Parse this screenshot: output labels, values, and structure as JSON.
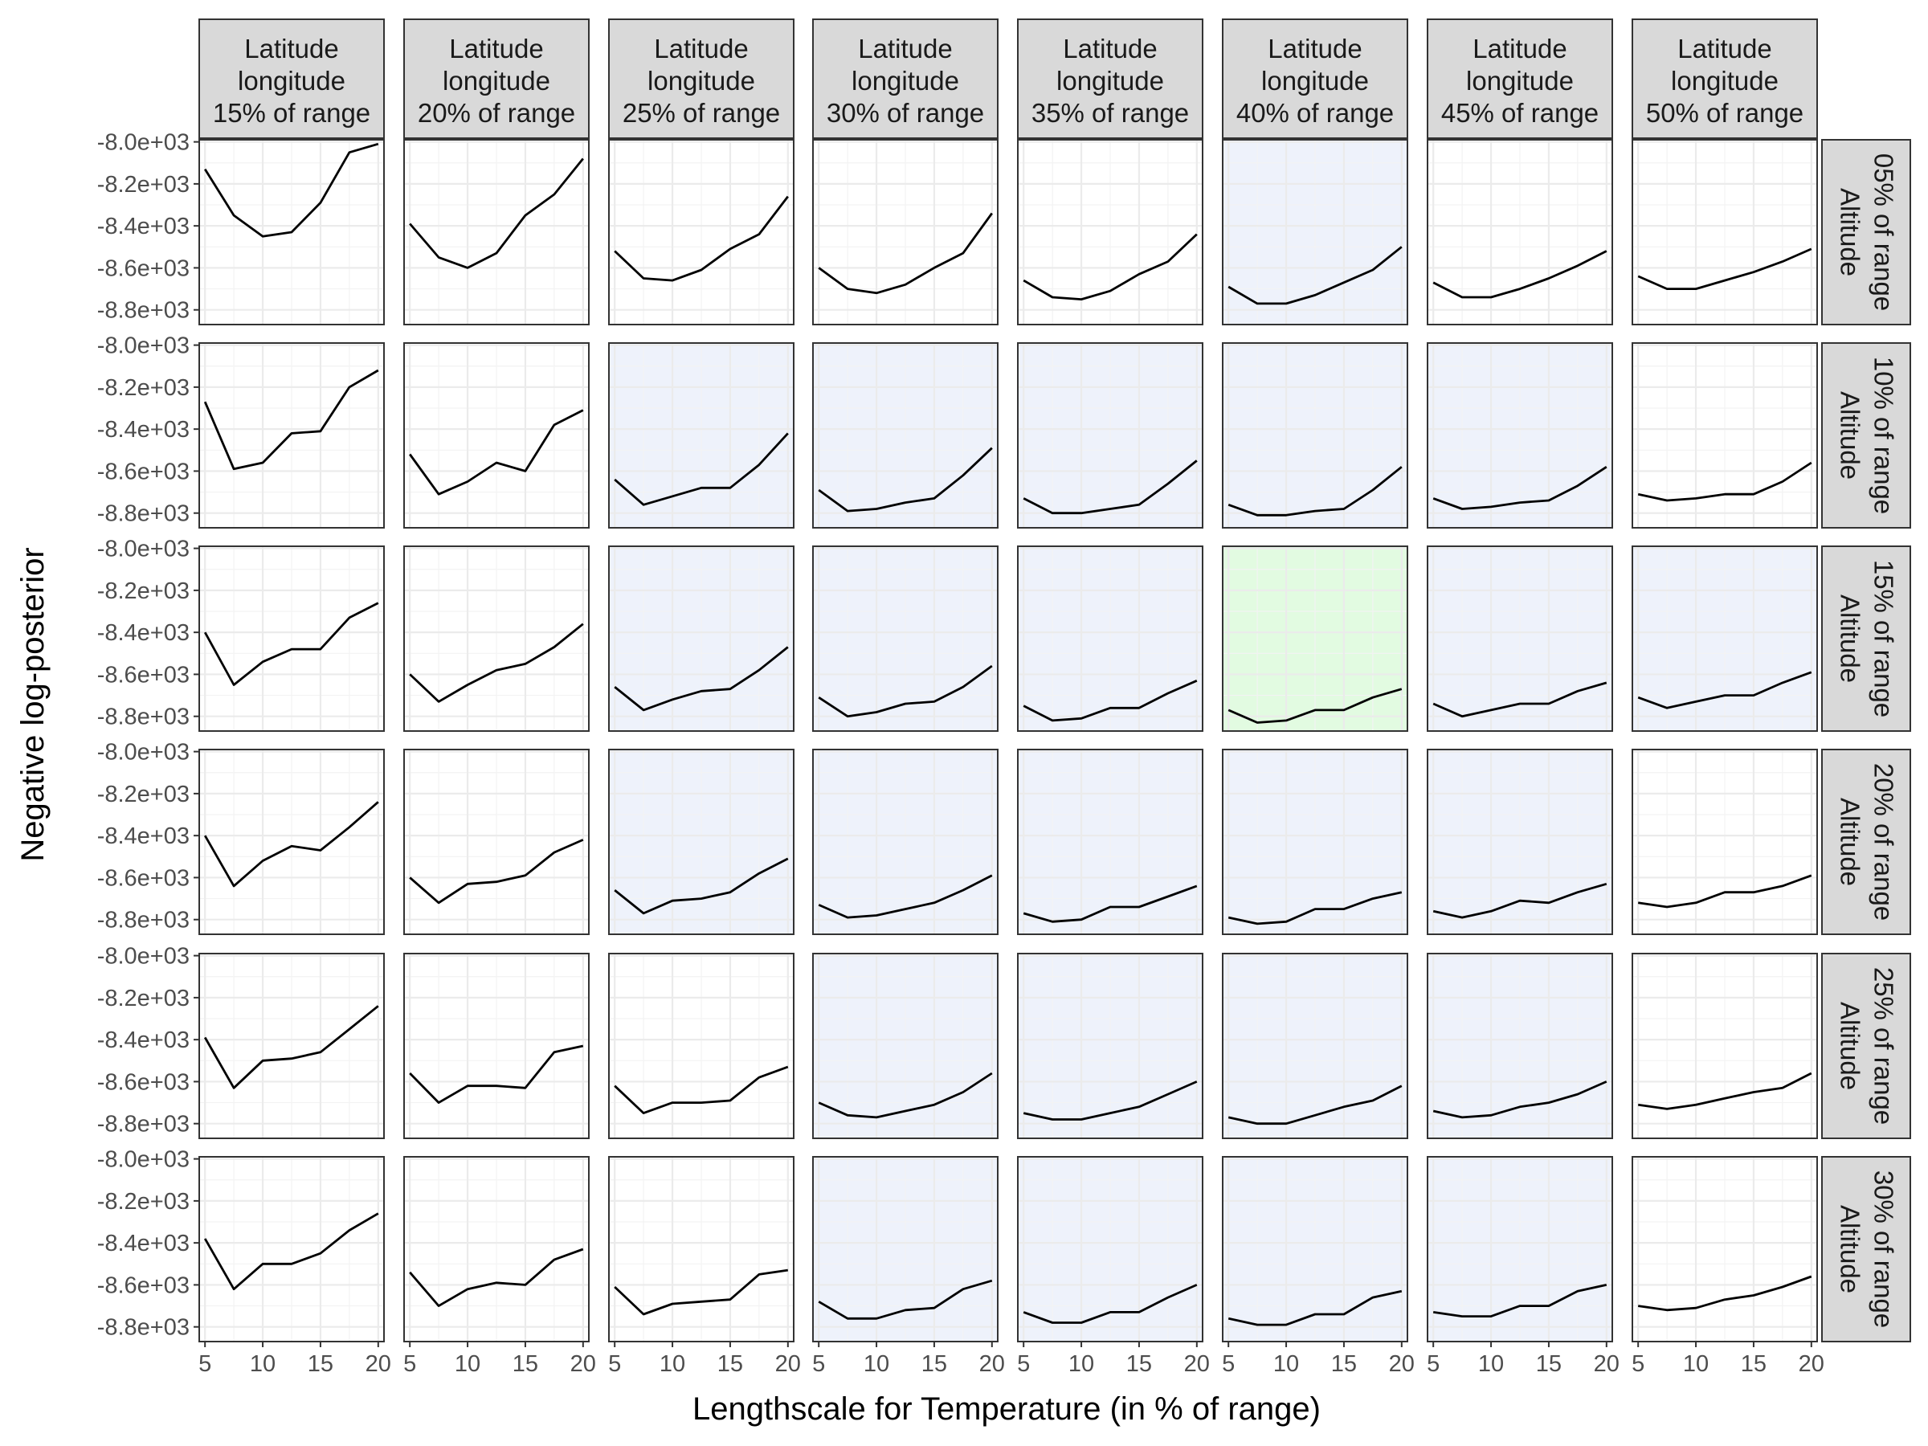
{
  "chart_data": {
    "type": "line",
    "layout": "facet-grid",
    "xlabel": "Lengthscale for Temperature (in % of range)",
    "ylabel": "Negative log-posterior",
    "x_ticks": [
      5,
      10,
      15,
      20
    ],
    "y_ticks": [
      -8000,
      -8200,
      -8400,
      -8600,
      -8800
    ],
    "y_tick_labels": [
      "-8.0e+03",
      "-8.2e+03",
      "-8.4e+03",
      "-8.6e+03",
      "-8.8e+03"
    ],
    "xlim": [
      4.5,
      20.5
    ],
    "ylim": [
      -8870,
      -7990
    ],
    "x": [
      5,
      7.5,
      10,
      12.5,
      15,
      17.5,
      20
    ],
    "col_facets": [
      {
        "name": "Latitude",
        "sub": "longitude",
        "label": "15% of range"
      },
      {
        "name": "Latitude",
        "sub": "longitude",
        "label": "20% of range"
      },
      {
        "name": "Latitude",
        "sub": "longitude",
        "label": "25% of range"
      },
      {
        "name": "Latitude",
        "sub": "longitude",
        "label": "30% of range"
      },
      {
        "name": "Latitude",
        "sub": "longitude",
        "label": "35% of range"
      },
      {
        "name": "Latitude",
        "sub": "longitude",
        "label": "40% of range"
      },
      {
        "name": "Latitude",
        "sub": "longitude",
        "label": "45% of range"
      },
      {
        "name": "Latitude",
        "sub": "longitude",
        "label": "50% of range"
      }
    ],
    "row_facets": [
      {
        "name": "Altitude",
        "label": "05% of range"
      },
      {
        "name": "Altitude",
        "label": "10% of range"
      },
      {
        "name": "Altitude",
        "label": "15% of range"
      },
      {
        "name": "Altitude",
        "label": "20% of range"
      },
      {
        "name": "Altitude",
        "label": "25% of range"
      },
      {
        "name": "Altitude",
        "label": "30% of range"
      }
    ],
    "highlight_colors": {
      "none": "#ffffff",
      "blue": "#eef2fb",
      "green": "#e2fbe1"
    },
    "highlight": [
      [
        "none",
        "none",
        "none",
        "none",
        "none",
        "blue",
        "none",
        "none"
      ],
      [
        "none",
        "none",
        "blue",
        "blue",
        "blue",
        "blue",
        "blue",
        "none"
      ],
      [
        "none",
        "none",
        "blue",
        "blue",
        "blue",
        "green",
        "blue",
        "blue"
      ],
      [
        "none",
        "none",
        "blue",
        "blue",
        "blue",
        "blue",
        "blue",
        "none"
      ],
      [
        "none",
        "none",
        "none",
        "blue",
        "blue",
        "blue",
        "blue",
        "none"
      ],
      [
        "none",
        "none",
        "none",
        "blue",
        "blue",
        "blue",
        "blue",
        "none"
      ]
    ],
    "panels": [
      [
        [
          -8130,
          -8350,
          -8450,
          -8430,
          -8290,
          -8050,
          -8010
        ],
        [
          -8390,
          -8550,
          -8600,
          -8530,
          -8350,
          -8250,
          -8080
        ],
        [
          -8520,
          -8650,
          -8660,
          -8610,
          -8510,
          -8440,
          -8260
        ],
        [
          -8600,
          -8700,
          -8720,
          -8680,
          -8600,
          -8530,
          -8340
        ],
        [
          -8660,
          -8740,
          -8750,
          -8710,
          -8630,
          -8570,
          -8440
        ],
        [
          -8690,
          -8770,
          -8770,
          -8730,
          -8670,
          -8610,
          -8500
        ],
        [
          -8670,
          -8740,
          -8740,
          -8700,
          -8650,
          -8590,
          -8520
        ],
        [
          -8640,
          -8700,
          -8700,
          -8660,
          -8620,
          -8570,
          -8510
        ]
      ],
      [
        [
          -8270,
          -8590,
          -8560,
          -8420,
          -8410,
          -8200,
          -8120
        ],
        [
          -8520,
          -8710,
          -8650,
          -8560,
          -8600,
          -8380,
          -8310
        ],
        [
          -8640,
          -8760,
          -8720,
          -8680,
          -8680,
          -8570,
          -8420
        ],
        [
          -8690,
          -8790,
          -8780,
          -8750,
          -8730,
          -8620,
          -8490
        ],
        [
          -8730,
          -8800,
          -8800,
          -8780,
          -8760,
          -8660,
          -8550
        ],
        [
          -8760,
          -8810,
          -8810,
          -8790,
          -8780,
          -8690,
          -8580
        ],
        [
          -8730,
          -8780,
          -8770,
          -8750,
          -8740,
          -8670,
          -8580
        ],
        [
          -8710,
          -8740,
          -8730,
          -8710,
          -8710,
          -8650,
          -8560
        ]
      ],
      [
        [
          -8400,
          -8650,
          -8540,
          -8480,
          -8480,
          -8330,
          -8260
        ],
        [
          -8600,
          -8730,
          -8650,
          -8580,
          -8550,
          -8470,
          -8360
        ],
        [
          -8660,
          -8770,
          -8720,
          -8680,
          -8670,
          -8580,
          -8470
        ],
        [
          -8710,
          -8800,
          -8780,
          -8740,
          -8730,
          -8660,
          -8560
        ],
        [
          -8750,
          -8820,
          -8810,
          -8760,
          -8760,
          -8690,
          -8630
        ],
        [
          -8770,
          -8830,
          -8820,
          -8770,
          -8770,
          -8710,
          -8670
        ],
        [
          -8740,
          -8800,
          -8770,
          -8740,
          -8740,
          -8680,
          -8640
        ],
        [
          -8710,
          -8760,
          -8730,
          -8700,
          -8700,
          -8640,
          -8590
        ]
      ],
      [
        [
          -8400,
          -8640,
          -8520,
          -8450,
          -8470,
          -8360,
          -8240
        ],
        [
          -8600,
          -8720,
          -8630,
          -8620,
          -8590,
          -8480,
          -8420
        ],
        [
          -8660,
          -8770,
          -8710,
          -8700,
          -8670,
          -8580,
          -8510
        ],
        [
          -8730,
          -8790,
          -8780,
          -8750,
          -8720,
          -8660,
          -8590
        ],
        [
          -8770,
          -8810,
          -8800,
          -8740,
          -8740,
          -8690,
          -8640
        ],
        [
          -8790,
          -8820,
          -8810,
          -8750,
          -8750,
          -8700,
          -8670
        ],
        [
          -8760,
          -8790,
          -8760,
          -8710,
          -8720,
          -8670,
          -8630
        ],
        [
          -8720,
          -8740,
          -8720,
          -8670,
          -8670,
          -8640,
          -8590
        ]
      ],
      [
        [
          -8390,
          -8630,
          -8500,
          -8490,
          -8460,
          -8350,
          -8240
        ],
        [
          -8560,
          -8700,
          -8620,
          -8620,
          -8630,
          -8460,
          -8430
        ],
        [
          -8620,
          -8750,
          -8700,
          -8700,
          -8690,
          -8580,
          -8530
        ],
        [
          -8700,
          -8760,
          -8770,
          -8740,
          -8710,
          -8650,
          -8560
        ],
        [
          -8750,
          -8780,
          -8780,
          -8750,
          -8720,
          -8660,
          -8600
        ],
        [
          -8770,
          -8800,
          -8800,
          -8760,
          -8720,
          -8690,
          -8620
        ],
        [
          -8740,
          -8770,
          -8760,
          -8720,
          -8700,
          -8660,
          -8600
        ],
        [
          -8710,
          -8730,
          -8710,
          -8680,
          -8650,
          -8630,
          -8560
        ]
      ],
      [
        [
          -8380,
          -8620,
          -8500,
          -8500,
          -8450,
          -8340,
          -8260
        ],
        [
          -8540,
          -8700,
          -8620,
          -8590,
          -8600,
          -8480,
          -8430
        ],
        [
          -8610,
          -8740,
          -8690,
          -8680,
          -8670,
          -8550,
          -8530
        ],
        [
          -8680,
          -8760,
          -8760,
          -8720,
          -8710,
          -8620,
          -8580
        ],
        [
          -8730,
          -8780,
          -8780,
          -8730,
          -8730,
          -8660,
          -8600
        ],
        [
          -8760,
          -8790,
          -8790,
          -8740,
          -8740,
          -8660,
          -8630
        ],
        [
          -8730,
          -8750,
          -8750,
          -8700,
          -8700,
          -8630,
          -8600
        ],
        [
          -8700,
          -8720,
          -8710,
          -8670,
          -8650,
          -8610,
          -8560
        ]
      ]
    ]
  }
}
